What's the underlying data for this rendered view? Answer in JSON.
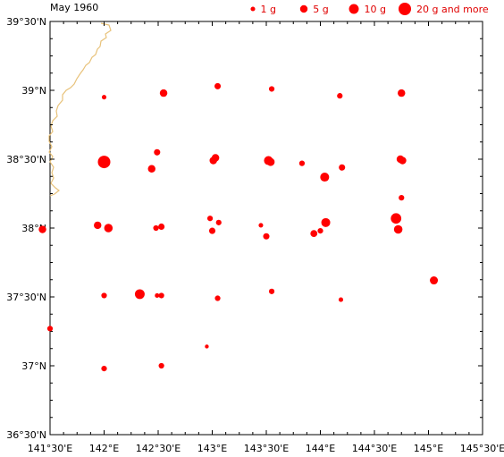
{
  "title": "May 1960",
  "colors": {
    "dot": "#ff0000",
    "coast": "#e8c27a",
    "legend_text": "#e00000",
    "frame": "#000000"
  },
  "legend": [
    {
      "label": "1 g",
      "grams": 1
    },
    {
      "label": "5 g",
      "grams": 5
    },
    {
      "label": "10 g",
      "grams": 10
    },
    {
      "label": "20 g and more",
      "grams": 20
    }
  ],
  "axes": {
    "lon_range": [
      141.5,
      145.5
    ],
    "lat_range": [
      36.5,
      39.5
    ],
    "x_ticks": [
      {
        "value": 141.5,
        "label": "141°30'E"
      },
      {
        "value": 142.0,
        "label": "142°E"
      },
      {
        "value": 142.5,
        "label": "142°30'E"
      },
      {
        "value": 143.0,
        "label": "143°E"
      },
      {
        "value": 143.5,
        "label": "143°30'E"
      },
      {
        "value": 144.0,
        "label": "144°E"
      },
      {
        "value": 144.5,
        "label": "144°30'E"
      },
      {
        "value": 145.0,
        "label": "145°E"
      },
      {
        "value": 145.5,
        "label": "145°30'E"
      }
    ],
    "y_ticks": [
      {
        "value": 39.5,
        "label": "39°30'N"
      },
      {
        "value": 39.0,
        "label": "39°N"
      },
      {
        "value": 38.5,
        "label": "38°30'N"
      },
      {
        "value": 38.0,
        "label": "38°N"
      },
      {
        "value": 37.5,
        "label": "37°30'N"
      },
      {
        "value": 37.0,
        "label": "37°N"
      },
      {
        "value": 36.5,
        "label": "36°30'N"
      }
    ]
  },
  "chart_data": {
    "type": "scatter",
    "title": "May 1960",
    "xlim": [
      141.5,
      145.5
    ],
    "ylim": [
      36.5,
      39.5
    ],
    "points": [
      {
        "lon": 142.0,
        "lat": 38.95,
        "grams": 1
      },
      {
        "lon": 142.55,
        "lat": 38.98,
        "grams": 5
      },
      {
        "lon": 143.05,
        "lat": 39.03,
        "grams": 3
      },
      {
        "lon": 143.55,
        "lat": 39.01,
        "grams": 2
      },
      {
        "lon": 144.18,
        "lat": 38.96,
        "grams": 2
      },
      {
        "lon": 144.75,
        "lat": 38.98,
        "grams": 5
      },
      {
        "lon": 142.0,
        "lat": 38.48,
        "grams": 20
      },
      {
        "lon": 142.49,
        "lat": 38.55,
        "grams": 3
      },
      {
        "lon": 142.44,
        "lat": 38.43,
        "grams": 5
      },
      {
        "lon": 143.03,
        "lat": 38.51,
        "grams": 5
      },
      {
        "lon": 143.01,
        "lat": 38.49,
        "grams": 5
      },
      {
        "lon": 143.52,
        "lat": 38.49,
        "grams": 8
      },
      {
        "lon": 143.54,
        "lat": 38.48,
        "grams": 6
      },
      {
        "lon": 143.83,
        "lat": 38.47,
        "grams": 2
      },
      {
        "lon": 144.04,
        "lat": 38.37,
        "grams": 8
      },
      {
        "lon": 144.2,
        "lat": 38.44,
        "grams": 3
      },
      {
        "lon": 144.74,
        "lat": 38.5,
        "grams": 5
      },
      {
        "lon": 144.76,
        "lat": 38.49,
        "grams": 5
      },
      {
        "lon": 144.75,
        "lat": 38.22,
        "grams": 2
      },
      {
        "lon": 141.43,
        "lat": 37.99,
        "grams": 5
      },
      {
        "lon": 141.94,
        "lat": 38.02,
        "grams": 5
      },
      {
        "lon": 142.04,
        "lat": 38.0,
        "grams": 7
      },
      {
        "lon": 142.48,
        "lat": 38.0,
        "grams": 2
      },
      {
        "lon": 142.53,
        "lat": 38.01,
        "grams": 3
      },
      {
        "lon": 142.98,
        "lat": 38.07,
        "grams": 2
      },
      {
        "lon": 143.0,
        "lat": 37.98,
        "grams": 3
      },
      {
        "lon": 143.06,
        "lat": 38.04,
        "grams": 2
      },
      {
        "lon": 143.45,
        "lat": 38.02,
        "grams": 1
      },
      {
        "lon": 143.5,
        "lat": 37.94,
        "grams": 3
      },
      {
        "lon": 143.94,
        "lat": 37.96,
        "grams": 4
      },
      {
        "lon": 144.0,
        "lat": 37.98,
        "grams": 2
      },
      {
        "lon": 144.05,
        "lat": 38.04,
        "grams": 8
      },
      {
        "lon": 144.7,
        "lat": 38.07,
        "grams": 12
      },
      {
        "lon": 144.72,
        "lat": 37.99,
        "grams": 7
      },
      {
        "lon": 145.05,
        "lat": 37.62,
        "grams": 6
      },
      {
        "lon": 141.5,
        "lat": 37.27,
        "grams": 2
      },
      {
        "lon": 142.0,
        "lat": 37.51,
        "grams": 2
      },
      {
        "lon": 142.33,
        "lat": 37.52,
        "grams": 10
      },
      {
        "lon": 142.49,
        "lat": 37.51,
        "grams": 1
      },
      {
        "lon": 142.53,
        "lat": 37.51,
        "grams": 2
      },
      {
        "lon": 143.05,
        "lat": 37.49,
        "grams": 2
      },
      {
        "lon": 143.55,
        "lat": 37.54,
        "grams": 2
      },
      {
        "lon": 144.19,
        "lat": 37.48,
        "grams": 1
      },
      {
        "lon": 142.95,
        "lat": 37.14,
        "grams": 0.5
      },
      {
        "lon": 142.0,
        "lat": 36.98,
        "grams": 2
      },
      {
        "lon": 142.53,
        "lat": 37.0,
        "grams": 2
      }
    ]
  }
}
